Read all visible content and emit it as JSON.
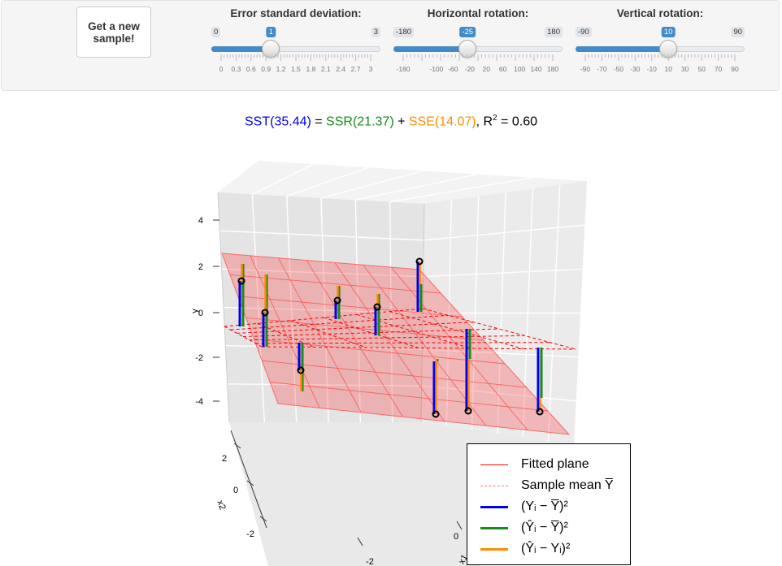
{
  "controls": {
    "new_sample_button": "Get a new sample!",
    "sliders": [
      {
        "label": "Error standard deviation:",
        "min": 0,
        "max": 3,
        "value": 1,
        "min_text": "0",
        "max_text": "3",
        "value_text": "1",
        "tick_labels": [
          "0",
          "0.3",
          "0.6",
          "0.9",
          "1.2",
          "1.5",
          "1.8",
          "2.1",
          "2.4",
          "2.7",
          "3"
        ]
      },
      {
        "label": "Horizontal rotation:",
        "min": -180,
        "max": 180,
        "value": -25,
        "min_text": "-180",
        "max_text": "180",
        "value_text": "-25",
        "tick_labels": [
          "-180",
          "-100",
          "-60",
          "-20",
          "20",
          "60",
          "100",
          "140",
          "180"
        ],
        "tick_values": [
          -180,
          -100,
          -60,
          -20,
          20,
          60,
          100,
          140,
          180
        ]
      },
      {
        "label": "Vertical rotation:",
        "min": -90,
        "max": 90,
        "value": 10,
        "min_text": "-90",
        "max_text": "90",
        "value_text": "10",
        "tick_labels": [
          "-90",
          "-70",
          "-50",
          "-30",
          "-10",
          "10",
          "30",
          "50",
          "70",
          "90"
        ]
      }
    ]
  },
  "formula": {
    "sst": "SST(35.44)",
    "eq": " = ",
    "ssr": "SSR(21.37)",
    "plus": " + ",
    "sse": "SSE(14.07)",
    "r2_prefix": ", R",
    "r2_sup": "2",
    "r2_value": " = 0.60"
  },
  "plot": {
    "y_axis_label": "y",
    "y_ticks": [
      "4",
      "2",
      "0",
      "-2",
      "-4"
    ],
    "x2_axis_label": "x2",
    "x2_ticks": [
      "2",
      "0",
      "-2"
    ],
    "x1_axis_label": "x1",
    "x1_ticks": [
      "-2",
      "0"
    ],
    "colors": {
      "sst": "#0000ee",
      "ssr": "#1a8a1a",
      "sse": "#ff8c00",
      "plane": "#ff0000"
    }
  },
  "legend": {
    "fitted_plane": "Fitted plane",
    "sample_mean": "Sample mean Y̅",
    "sst_term": "(Yᵢ − Y̅)²",
    "ssr_term": "(Ŷᵢ − Y̅)²",
    "sse_term": "(Ŷᵢ − Yᵢ)²"
  }
}
